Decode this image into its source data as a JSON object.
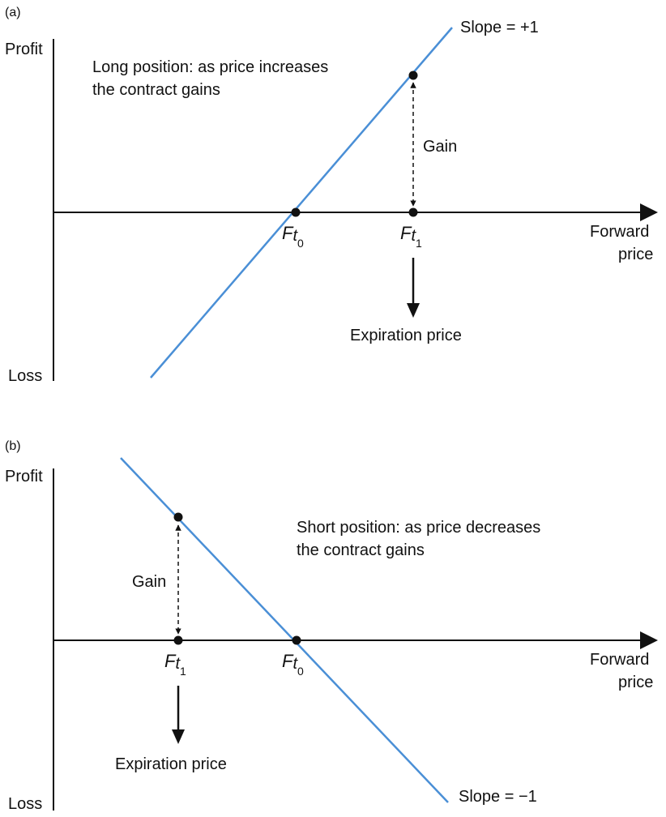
{
  "colors": {
    "payoff_line": "#4a8fd6",
    "ink": "#111111"
  },
  "panel_a": {
    "tag": "(a)",
    "axis_top": "Profit",
    "axis_bottom": "Loss",
    "x_axis_label_1": "Forward",
    "x_axis_label_2": "price",
    "description_line1": "Long position: as price increases",
    "description_line2": "the contract gains",
    "slope_label": "Slope = +1",
    "gain_label": "Gain",
    "f0_main": "F",
    "f0_sub": "t",
    "f0_subsub": "0",
    "f1_main": "F",
    "f1_sub": "t",
    "f1_subsub": "1",
    "expiration_label": "Expiration price"
  },
  "panel_b": {
    "tag": "(b)",
    "axis_top": "Profit",
    "axis_bottom": "Loss",
    "x_axis_label_1": "Forward",
    "x_axis_label_2": "price",
    "description_line1": "Short position: as price decreases",
    "description_line2": "the contract gains",
    "slope_label": "Slope = −1",
    "gain_label": "Gain",
    "f0_main": "F",
    "f0_sub": "t",
    "f0_subsub": "0",
    "f1_main": "F",
    "f1_sub": "t",
    "f1_subsub": "1",
    "expiration_label": "Expiration price"
  }
}
